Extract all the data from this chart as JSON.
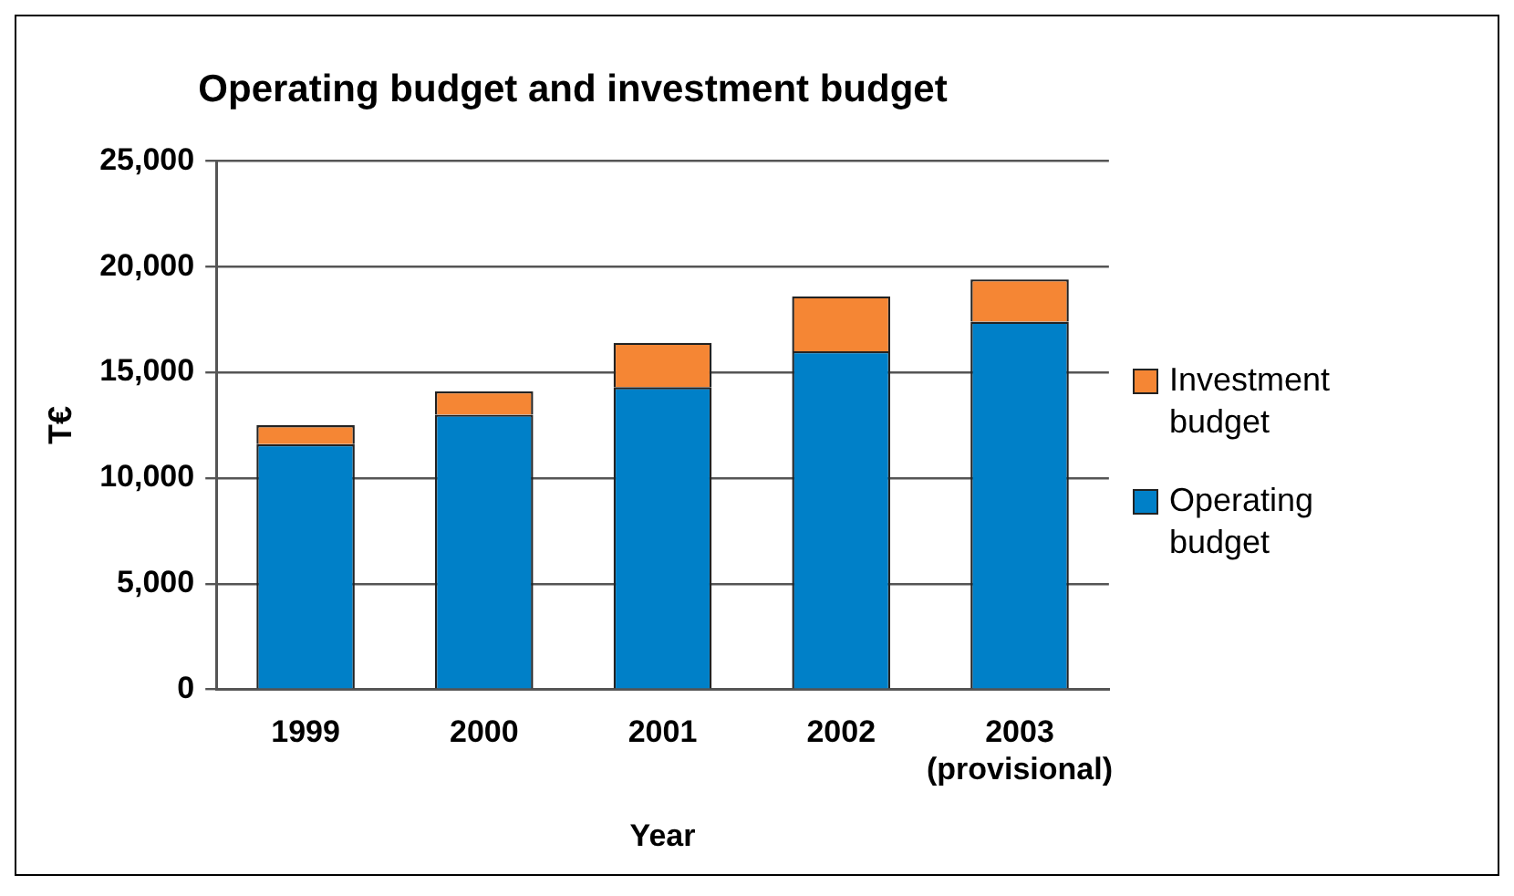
{
  "chart_data": {
    "type": "bar",
    "title": "Operating budget and investment budget",
    "xlabel": "Year",
    "ylabel": "T€",
    "categories": [
      "1999",
      "2000",
      "2001",
      "2002",
      "2003\n(provisional)"
    ],
    "series": [
      {
        "name": "Operating budget",
        "color": "#0080c8",
        "values": [
          11600,
          13000,
          14300,
          16000,
          17400
        ]
      },
      {
        "name": "Investment budget",
        "color": "#f58634",
        "values": [
          900,
          1100,
          2100,
          2600,
          2000
        ]
      }
    ],
    "stacked": true,
    "ylim": [
      0,
      25000
    ],
    "yticks": [
      {
        "value": 0,
        "label": "0"
      },
      {
        "value": 5000,
        "label": "5,000"
      },
      {
        "value": 10000,
        "label": "10,000"
      },
      {
        "value": 15000,
        "label": "15,000"
      },
      {
        "value": 20000,
        "label": "20,000"
      },
      {
        "value": 25000,
        "label": "25,000"
      }
    ],
    "grid": "y",
    "legend": "right"
  }
}
